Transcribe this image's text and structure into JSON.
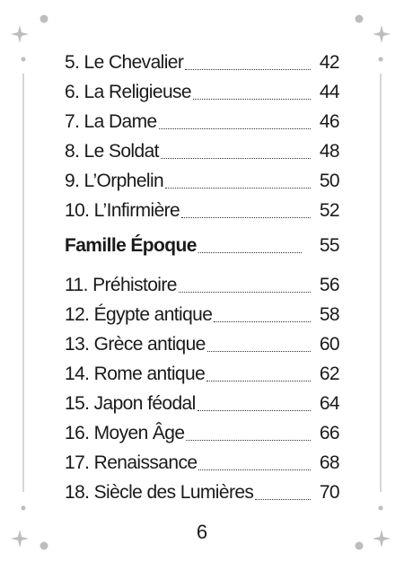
{
  "groups": [
    {
      "items": [
        {
          "title": "5. Le Chevalier",
          "page": 42
        },
        {
          "title": "6. La Religieuse",
          "page": 44
        },
        {
          "title": "7. La Dame",
          "page": 46
        },
        {
          "title": "8. Le Soldat",
          "page": 48
        },
        {
          "title": "9. L’Orphelin",
          "page": 50
        },
        {
          "title": "10. L’Infirmière",
          "page": 52
        }
      ]
    },
    {
      "heading": {
        "title": "Famille Époque",
        "page": 55
      },
      "items": [
        {
          "title": "11. Préhistoire",
          "page": 56
        },
        {
          "title": "12. Égypte antique",
          "page": 58
        },
        {
          "title": "13. Grèce antique",
          "page": 60
        },
        {
          "title": "14. Rome antique",
          "page": 62
        },
        {
          "title": "15. Japon féodal",
          "page": 64
        },
        {
          "title": "16. Moyen Âge",
          "page": 66
        },
        {
          "title": "17. Renaissance",
          "page": 68
        },
        {
          "title": "18. Siècle des Lumières",
          "page": 70
        }
      ]
    }
  ],
  "page_number": 6
}
